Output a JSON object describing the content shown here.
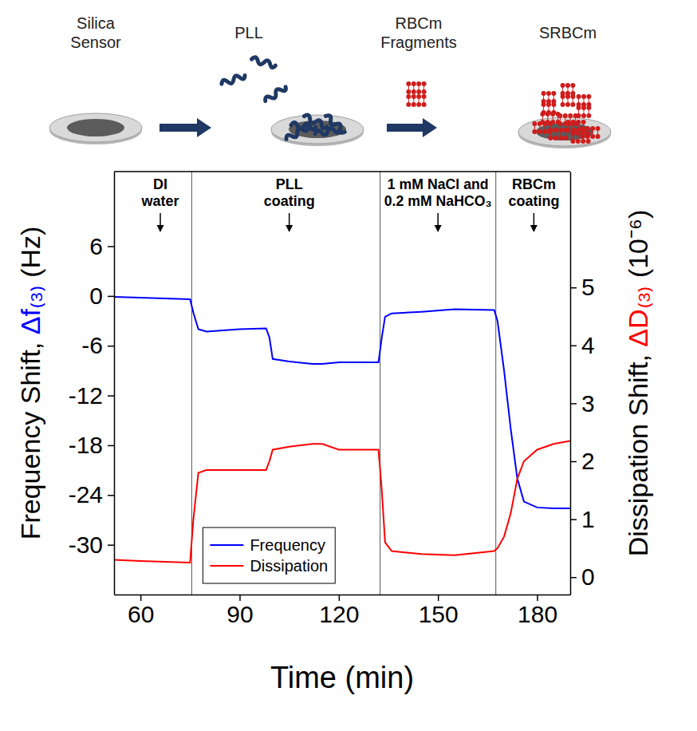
{
  "schematic": {
    "labels": [
      [
        "Silica",
        "Sensor"
      ],
      [
        "PLL"
      ],
      [
        "RBCm",
        "Fragments"
      ],
      [
        "SRBCm"
      ]
    ]
  },
  "chart_data": {
    "type": "line",
    "x_label": "Time (min)",
    "y_label": [
      "Frequency Shift, ",
      "Δf₍₃₎",
      " (Hz)"
    ],
    "y2_label": [
      "Dissipation Shift, ",
      "ΔD₍₃₎",
      " (10⁻⁶)"
    ],
    "x": [
      52,
      60,
      75,
      76,
      77.5,
      80,
      90,
      98,
      99,
      100,
      105,
      112,
      115,
      120,
      125,
      132,
      133,
      134,
      136,
      145,
      155,
      167,
      168,
      170,
      172,
      174,
      176,
      180,
      185,
      190
    ],
    "series": [
      {
        "name": "Frequency",
        "color": "#0000ff",
        "values": [
          -0.1,
          -0.2,
          -0.4,
          -2.0,
          -4.0,
          -4.3,
          -4.0,
          -3.9,
          -5.0,
          -7.6,
          -7.9,
          -8.2,
          -8.2,
          -8.0,
          -8.0,
          -8.0,
          -5.0,
          -2.5,
          -2.1,
          -1.9,
          -1.6,
          -1.7,
          -3.0,
          -9.0,
          -16.0,
          -22.0,
          -24.8,
          -25.5,
          -25.6,
          -25.6
        ]
      },
      {
        "name": "Dissipation",
        "color": "#ff0000",
        "axis": "y2",
        "values": [
          0.3,
          0.28,
          0.25,
          1.0,
          1.8,
          1.85,
          1.85,
          1.85,
          2.0,
          2.2,
          2.25,
          2.3,
          2.3,
          2.2,
          2.2,
          2.2,
          1.5,
          0.6,
          0.45,
          0.4,
          0.38,
          0.45,
          0.5,
          0.7,
          1.1,
          1.7,
          2.0,
          2.2,
          2.3,
          2.35
        ]
      }
    ],
    "xlim": [
      52,
      190
    ],
    "xticks": [
      60,
      90,
      120,
      150,
      180
    ],
    "ylim": [
      -36,
      15
    ],
    "yticks": [
      -30,
      -24,
      -18,
      -12,
      -6,
      0,
      6
    ],
    "y2lim": [
      -0.3,
      7
    ],
    "y2ticks": [
      0,
      1,
      2,
      3,
      4,
      5
    ],
    "boundaries": [
      75.5,
      132.5,
      167.5
    ],
    "annotations": [
      {
        "lines": [
          "DI",
          "water"
        ],
        "x": 66
      },
      {
        "lines": [
          "PLL",
          "coating"
        ],
        "x": 105
      },
      {
        "lines": [
          "1 mM NaCl and",
          "0.2 mM NaHCO₃"
        ],
        "x": 150
      },
      {
        "lines": [
          "RBCm",
          "coating"
        ],
        "x": 179
      }
    ],
    "legend": "lower left",
    "grid": false
  }
}
